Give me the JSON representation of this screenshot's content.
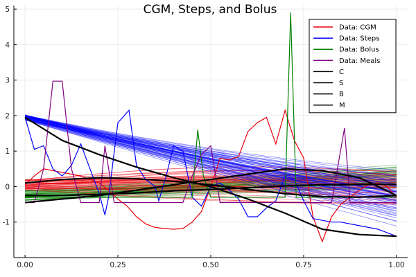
{
  "chart_data": {
    "type": "line",
    "title": "CGM, Steps, and Bolus",
    "xlabel": "",
    "ylabel": "",
    "xlim": [
      -0.03,
      1.03
    ],
    "ylim": [
      -2.0,
      5.1
    ],
    "xticks": [
      0.0,
      0.25,
      0.5,
      0.75,
      1.0
    ],
    "xtick_labels": [
      "0.00",
      "0.25",
      "0.50",
      "0.75",
      "1.00"
    ],
    "yticks": [
      -1,
      0,
      1,
      2,
      3,
      4,
      5
    ],
    "ytick_labels": [
      "-1",
      "0",
      "1",
      "2",
      "3",
      "4",
      "5"
    ],
    "grid": true,
    "legend_position": "top-right",
    "legend": [
      {
        "label": "Data: CGM",
        "color": "#e8000b"
      },
      {
        "label": "Data: Steps",
        "color": "#0000ff"
      },
      {
        "label": "Data: Bolus",
        "color": "#008000"
      },
      {
        "label": "Data: Meals",
        "color": "#800080"
      },
      {
        "label": "C",
        "color": "#000000"
      },
      {
        "label": "S",
        "color": "#000000"
      },
      {
        "label": "B",
        "color": "#000000"
      },
      {
        "label": "M",
        "color": "#000000"
      }
    ],
    "data_series": [
      {
        "name": "Data: CGM",
        "color": "#e8000b",
        "x": [
          0.0,
          0.025,
          0.05,
          0.075,
          0.1,
          0.125,
          0.15,
          0.175,
          0.2,
          0.225,
          0.25,
          0.275,
          0.3,
          0.325,
          0.35,
          0.375,
          0.4,
          0.425,
          0.45,
          0.475,
          0.5,
          0.525,
          0.55,
          0.575,
          0.6,
          0.625,
          0.65,
          0.675,
          0.7,
          0.725,
          0.75,
          0.775,
          0.8,
          0.825,
          0.85,
          0.875,
          0.9,
          0.925,
          0.95,
          0.975,
          1.0
        ],
        "y": [
          0.05,
          0.3,
          0.5,
          0.45,
          0.4,
          0.35,
          0.3,
          0.2,
          0.1,
          -0.1,
          -0.35,
          -0.55,
          -0.85,
          -1.05,
          -1.15,
          -1.18,
          -1.2,
          -1.18,
          -1.0,
          -0.7,
          0.0,
          0.8,
          0.75,
          0.85,
          1.55,
          1.8,
          1.95,
          1.2,
          2.15,
          1.3,
          0.8,
          -0.85,
          -1.55,
          -0.85,
          -0.5,
          -0.3,
          -0.1,
          0.05,
          0.1,
          0.0,
          -0.3
        ]
      },
      {
        "name": "Data: Steps",
        "color": "#0000ff",
        "x": [
          0.0,
          0.025,
          0.05,
          0.075,
          0.1,
          0.125,
          0.15,
          0.175,
          0.2,
          0.215,
          0.225,
          0.25,
          0.28,
          0.3,
          0.325,
          0.35,
          0.36,
          0.38,
          0.4,
          0.425,
          0.45,
          0.475,
          0.5,
          0.525,
          0.55,
          0.575,
          0.6,
          0.625,
          0.65,
          0.675,
          0.7,
          0.725,
          0.75,
          0.775,
          0.8,
          0.825,
          0.85,
          0.875,
          0.9,
          0.925,
          0.95,
          0.975,
          1.0
        ],
        "y": [
          1.95,
          1.05,
          1.15,
          0.5,
          0.3,
          0.6,
          1.2,
          0.5,
          -0.2,
          -0.8,
          -0.3,
          1.8,
          2.15,
          0.6,
          0.2,
          0.0,
          -0.4,
          0.3,
          1.15,
          1.0,
          -0.3,
          -0.55,
          0.0,
          0.1,
          -0.1,
          -0.35,
          -0.85,
          -0.85,
          -0.6,
          -0.4,
          0.3,
          0.2,
          -0.4,
          -0.9,
          -0.95,
          -1.0,
          -1.0,
          -1.05,
          -1.1,
          -1.15,
          -1.2,
          -1.3,
          -1.4
        ]
      },
      {
        "name": "Data: Bolus",
        "color": "#008000",
        "x": [
          0.0,
          0.025,
          0.05,
          0.075,
          0.1,
          0.125,
          0.15,
          0.175,
          0.2,
          0.225,
          0.25,
          0.275,
          0.3,
          0.325,
          0.35,
          0.375,
          0.4,
          0.425,
          0.45,
          0.465,
          0.48,
          0.5,
          0.525,
          0.55,
          0.575,
          0.6,
          0.625,
          0.65,
          0.675,
          0.7,
          0.715,
          0.73,
          0.75,
          0.775,
          0.8,
          0.825,
          0.85,
          0.875,
          0.9,
          0.925,
          0.95,
          0.975,
          1.0
        ],
        "y": [
          -0.3,
          -0.3,
          -0.3,
          -0.3,
          -0.3,
          -0.3,
          -0.3,
          -0.3,
          -0.3,
          -0.3,
          -0.3,
          -0.3,
          -0.3,
          -0.3,
          -0.3,
          -0.3,
          -0.3,
          -0.3,
          -0.3,
          1.6,
          0.3,
          -0.3,
          -0.3,
          -0.3,
          -0.3,
          -0.3,
          -0.3,
          -0.3,
          -0.3,
          -0.3,
          4.9,
          -0.3,
          -0.3,
          -0.3,
          -0.3,
          -0.3,
          -0.3,
          -0.3,
          -0.3,
          -0.3,
          -0.3,
          -0.3,
          -0.3
        ]
      },
      {
        "name": "Data: Meals",
        "color": "#800080",
        "x": [
          0.0,
          0.025,
          0.05,
          0.075,
          0.1,
          0.125,
          0.15,
          0.175,
          0.2,
          0.215,
          0.24,
          0.275,
          0.3,
          0.325,
          0.35,
          0.375,
          0.4,
          0.425,
          0.45,
          0.475,
          0.5,
          0.525,
          0.55,
          0.575,
          0.6,
          0.625,
          0.65,
          0.675,
          0.7,
          0.725,
          0.75,
          0.775,
          0.8,
          0.825,
          0.86,
          0.875,
          0.9,
          0.925,
          0.95,
          0.975,
          1.0
        ],
        "y": [
          -0.45,
          -0.45,
          0.5,
          2.97,
          2.97,
          0.5,
          -0.45,
          -0.45,
          -0.45,
          1.15,
          -0.45,
          -0.45,
          -0.45,
          -0.45,
          -0.45,
          -0.45,
          -0.45,
          -0.45,
          0.3,
          0.9,
          1.15,
          -0.45,
          -0.45,
          -0.45,
          -0.45,
          -0.45,
          -0.45,
          -0.45,
          -0.45,
          -0.45,
          -0.45,
          -0.45,
          -0.45,
          -0.45,
          1.65,
          -0.45,
          -0.45,
          -0.45,
          -0.45,
          -0.45,
          -0.45
        ]
      }
    ],
    "fit_series": [
      {
        "name": "C",
        "color": "#000000",
        "x": [
          0.0,
          0.1,
          0.2,
          0.3,
          0.4,
          0.5,
          0.6,
          0.7,
          0.8,
          0.9,
          1.0
        ],
        "y": [
          0.1,
          0.2,
          0.25,
          0.22,
          0.15,
          0.05,
          -0.08,
          -0.2,
          -0.28,
          -0.3,
          -0.25
        ]
      },
      {
        "name": "S",
        "color": "#000000",
        "x": [
          0.0,
          0.1,
          0.2,
          0.3,
          0.4,
          0.5,
          0.6,
          0.7,
          0.8,
          0.9,
          1.0
        ],
        "y": [
          1.95,
          1.3,
          0.9,
          0.55,
          0.25,
          0.0,
          -0.35,
          -0.75,
          -1.2,
          -1.35,
          -1.4
        ]
      },
      {
        "name": "B",
        "color": "#000000",
        "x": [
          0.0,
          0.1,
          0.2,
          0.3,
          0.4,
          0.5,
          0.6,
          0.7,
          0.8,
          0.9,
          1.0
        ],
        "y": [
          -0.25,
          -0.25,
          -0.22,
          -0.18,
          -0.12,
          -0.08,
          -0.03,
          0.02,
          0.05,
          0.06,
          0.06
        ]
      },
      {
        "name": "M",
        "color": "#000000",
        "x": [
          0.0,
          0.1,
          0.2,
          0.3,
          0.4,
          0.5,
          0.6,
          0.7,
          0.8,
          0.9,
          1.0
        ],
        "y": [
          -0.45,
          -0.35,
          -0.25,
          -0.1,
          0.05,
          0.2,
          0.35,
          0.5,
          0.45,
          0.25,
          -0.25
        ]
      }
    ],
    "ensemble_colors": [
      "#0000ff",
      "#e8000b",
      "#008000"
    ]
  }
}
